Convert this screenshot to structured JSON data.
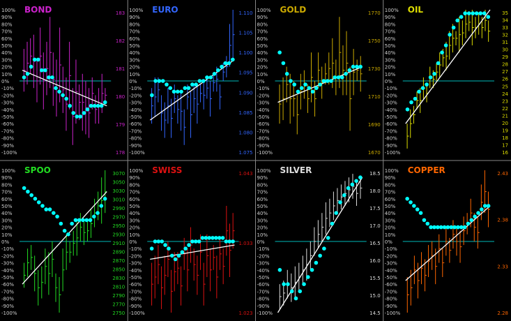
{
  "axis_left_ticks": [
    "100%",
    "90%",
    "80%",
    "70%",
    "60%",
    "50%",
    "40%",
    "30%",
    "20%",
    "10%",
    "0%",
    "-10%",
    "-20%",
    "-30%",
    "-40%",
    "-50%",
    "-60%",
    "-70%",
    "-80%",
    "-90%",
    "-100%"
  ],
  "colors": {
    "background": "#000000",
    "zero_line": "#00b8b8",
    "dots": "#00ffff",
    "trend": "#ffffff",
    "axis_text": "#cfcfcf",
    "divider": "#888888"
  },
  "chart_data": [
    {
      "type": "bar",
      "title": "BOND",
      "color": "#cc22cc",
      "right_ticks": [
        "183",
        "182",
        "181",
        "180",
        "179",
        "178"
      ],
      "ohlc_range_low_high_pct": [
        [
          -15,
          45
        ],
        [
          -5,
          55
        ],
        [
          10,
          60
        ],
        [
          -10,
          65
        ],
        [
          -30,
          30
        ],
        [
          -5,
          75
        ],
        [
          -40,
          40
        ],
        [
          -20,
          55
        ],
        [
          -10,
          90
        ],
        [
          -35,
          40
        ],
        [
          -50,
          30
        ],
        [
          -30,
          75
        ],
        [
          -45,
          20
        ],
        [
          -70,
          5
        ],
        [
          -40,
          55
        ],
        [
          -90,
          -10
        ],
        [
          -60,
          30
        ],
        [
          -55,
          -5
        ],
        [
          -70,
          10
        ],
        [
          -75,
          0
        ],
        [
          -80,
          -10
        ],
        [
          -40,
          5
        ],
        [
          -60,
          -20
        ],
        [
          -60,
          -10
        ],
        [
          -45,
          10
        ],
        [
          -30,
          -10
        ]
      ],
      "momentum_pct": [
        5,
        10,
        20,
        30,
        30,
        15,
        15,
        5,
        5,
        -10,
        -15,
        -20,
        -25,
        -35,
        -45,
        -50,
        -50,
        -45,
        -40,
        -35,
        -35,
        -35,
        -35,
        -30
      ],
      "trend_line_pct": [
        15,
        -35
      ]
    },
    {
      "type": "bar",
      "title": "EURO",
      "color": "#3366ff",
      "right_ticks": [
        "1.110",
        "1.105",
        "1.100",
        "1.095",
        "1.090",
        "1.085",
        "1.080",
        "1.075"
      ],
      "ohlc_range_low_high_pct": [
        [
          -60,
          -10
        ],
        [
          -50,
          5
        ],
        [
          -30,
          5
        ],
        [
          -70,
          -20
        ],
        [
          -80,
          -30
        ],
        [
          -60,
          -10
        ],
        [
          -80,
          -25
        ],
        [
          -45,
          -5
        ],
        [
          -60,
          -20
        ],
        [
          -70,
          -15
        ],
        [
          -90,
          -40
        ],
        [
          -40,
          -5
        ],
        [
          -80,
          -15
        ],
        [
          -45,
          -5
        ],
        [
          -60,
          -5
        ],
        [
          -30,
          -5
        ],
        [
          -40,
          0
        ],
        [
          -25,
          5
        ],
        [
          -50,
          0
        ],
        [
          -15,
          10
        ],
        [
          -15,
          20
        ],
        [
          -40,
          -5
        ],
        [
          0,
          25
        ],
        [
          5,
          35
        ],
        [
          20,
          80
        ],
        [
          30,
          100
        ]
      ],
      "momentum_pct": [
        -20,
        0,
        0,
        0,
        -5,
        -10,
        -15,
        -15,
        -15,
        -10,
        -10,
        -5,
        -5,
        0,
        0,
        5,
        5,
        10,
        15,
        20,
        25,
        25,
        30
      ],
      "trend_line_pct": [
        -55,
        30
      ]
    },
    {
      "type": "bar",
      "title": "GOLD",
      "color": "#ccaa00",
      "right_ticks": [
        "1770",
        "1750",
        "1730",
        "1710",
        "1690",
        "1670"
      ],
      "ohlc_range_low_high_pct": [
        [
          -60,
          -5
        ],
        [
          -55,
          5
        ],
        [
          -30,
          20
        ],
        [
          -60,
          10
        ],
        [
          -50,
          0
        ],
        [
          -75,
          -20
        ],
        [
          -40,
          10
        ],
        [
          -25,
          15
        ],
        [
          -45,
          -5
        ],
        [
          -30,
          40
        ],
        [
          -50,
          0
        ],
        [
          -10,
          40
        ],
        [
          -25,
          20
        ],
        [
          -5,
          25
        ],
        [
          -5,
          40
        ],
        [
          -10,
          60
        ],
        [
          -20,
          30
        ],
        [
          -10,
          90
        ],
        [
          -20,
          50
        ],
        [
          -20,
          70
        ],
        [
          -70,
          20
        ],
        [
          -20,
          45
        ],
        [
          0,
          30
        ],
        [
          -15,
          35
        ]
      ],
      "momentum_pct": [
        40,
        25,
        10,
        0,
        -5,
        -15,
        -10,
        -5,
        -10,
        -15,
        -10,
        -5,
        0,
        0,
        0,
        5,
        5,
        5,
        10,
        15,
        20,
        20,
        20
      ],
      "trend_line_pct": [
        -30,
        20
      ]
    },
    {
      "type": "bar",
      "title": "OIL",
      "color": "#dddd00",
      "right_ticks": [
        "35",
        "34",
        "33",
        "32",
        "31",
        "30",
        "29",
        "28",
        "27",
        "26",
        "25",
        "24",
        "23",
        "22",
        "21",
        "20",
        "19",
        "18",
        "17",
        "16"
      ],
      "ohlc_range_low_high_pct": [
        [
          -95,
          -60
        ],
        [
          -80,
          -40
        ],
        [
          -60,
          -35
        ],
        [
          -40,
          -15
        ],
        [
          -45,
          -10
        ],
        [
          -25,
          5
        ],
        [
          -30,
          -5
        ],
        [
          -10,
          20
        ],
        [
          -10,
          15
        ],
        [
          0,
          25
        ],
        [
          5,
          40
        ],
        [
          20,
          45
        ],
        [
          15,
          55
        ],
        [
          30,
          70
        ],
        [
          40,
          80
        ],
        [
          50,
          70
        ],
        [
          40,
          90
        ],
        [
          50,
          85
        ],
        [
          60,
          100
        ],
        [
          70,
          95
        ],
        [
          50,
          100
        ],
        [
          60,
          90
        ],
        [
          65,
          95
        ],
        [
          60,
          90
        ],
        [
          70,
          100
        ],
        [
          55,
          85
        ]
      ],
      "momentum_pct": [
        -40,
        -30,
        -25,
        -15,
        -10,
        -5,
        5,
        10,
        25,
        40,
        50,
        65,
        75,
        85,
        90,
        95,
        95,
        95,
        95,
        95,
        95,
        90
      ],
      "trend_line_pct": [
        -60,
        100
      ]
    },
    {
      "type": "bar",
      "title": "SPOO",
      "color": "#22dd22",
      "right_ticks": [
        "3070",
        "3050",
        "3030",
        "3010",
        "2990",
        "2970",
        "2950",
        "2930",
        "2910",
        "2890",
        "2870",
        "2850",
        "2830",
        "2810",
        "2790",
        "2770",
        "2750"
      ],
      "ohlc_range_low_high_pct": [
        [
          -65,
          -30
        ],
        [
          -50,
          -10
        ],
        [
          -40,
          -5
        ],
        [
          -70,
          -20
        ],
        [
          -90,
          -40
        ],
        [
          -80,
          -35
        ],
        [
          -60,
          -10
        ],
        [
          -75,
          -15
        ],
        [
          -50,
          0
        ],
        [
          -85,
          -45
        ],
        [
          -100,
          -50
        ],
        [
          -70,
          -10
        ],
        [
          -40,
          10
        ],
        [
          -30,
          0
        ],
        [
          -20,
          15
        ],
        [
          -20,
          30
        ],
        [
          0,
          40
        ],
        [
          -5,
          30
        ],
        [
          0,
          30
        ],
        [
          5,
          45
        ],
        [
          20,
          60
        ],
        [
          30,
          70
        ],
        [
          25,
          90
        ],
        [
          40,
          100
        ]
      ],
      "momentum_pct": [
        75,
        70,
        65,
        60,
        55,
        50,
        45,
        45,
        40,
        35,
        25,
        15,
        10,
        25,
        30,
        30,
        30,
        30,
        30,
        35,
        40,
        50,
        60
      ],
      "trend_line_pct": [
        -60,
        70
      ]
    },
    {
      "type": "bar",
      "title": "SWISS",
      "color": "#dd1111",
      "right_ticks": [
        "1.043",
        "1.033",
        "1.023"
      ],
      "ohlc_range_low_high_pct": [
        [
          -90,
          -30
        ],
        [
          -80,
          -20
        ],
        [
          -60,
          -5
        ],
        [
          -95,
          -35
        ],
        [
          -75,
          -20
        ],
        [
          -50,
          0
        ],
        [
          -100,
          -40
        ],
        [
          -70,
          -15
        ],
        [
          -60,
          -15
        ],
        [
          -90,
          -35
        ],
        [
          -40,
          5
        ],
        [
          -70,
          -10
        ],
        [
          -30,
          20
        ],
        [
          -55,
          -10
        ],
        [
          -75,
          -20
        ],
        [
          -40,
          10
        ],
        [
          -90,
          -30
        ],
        [
          -50,
          10
        ],
        [
          -70,
          -10
        ],
        [
          -40,
          -5
        ],
        [
          -80,
          -20
        ],
        [
          -40,
          5
        ],
        [
          -60,
          -10
        ],
        [
          -20,
          50
        ],
        [
          -50,
          25
        ],
        [
          -10,
          40
        ]
      ],
      "momentum_pct": [
        -10,
        0,
        0,
        0,
        -5,
        -10,
        -20,
        -25,
        -20,
        -15,
        -10,
        -5,
        0,
        0,
        0,
        5,
        5,
        5,
        5,
        5,
        5,
        5,
        0,
        0,
        0
      ],
      "trend_line_pct": [
        -25,
        -5
      ]
    },
    {
      "type": "bar",
      "title": "SILVER",
      "color": "#dddddd",
      "right_ticks": [
        "18.5",
        "18.0",
        "17.5",
        "17.0",
        "16.5",
        "16.0",
        "15.5",
        "15.0",
        "14.5"
      ],
      "ohlc_range_low_high_pct": [
        [
          -95,
          -60
        ],
        [
          -90,
          -55
        ],
        [
          -80,
          -40
        ],
        [
          -85,
          -45
        ],
        [
          -80,
          -35
        ],
        [
          -70,
          -30
        ],
        [
          -60,
          -20
        ],
        [
          -55,
          -10
        ],
        [
          -40,
          0
        ],
        [
          -20,
          20
        ],
        [
          -10,
          30
        ],
        [
          0,
          40
        ],
        [
          10,
          55
        ],
        [
          20,
          60
        ],
        [
          30,
          70
        ],
        [
          40,
          75
        ],
        [
          45,
          80
        ],
        [
          50,
          85
        ],
        [
          55,
          90
        ],
        [
          60,
          95
        ],
        [
          50,
          85
        ],
        [
          60,
          90
        ]
      ],
      "momentum_pct": [
        -40,
        -60,
        -60,
        -70,
        -80,
        -70,
        -60,
        -50,
        -40,
        -30,
        -20,
        -10,
        5,
        25,
        40,
        55,
        65,
        75,
        80,
        85,
        90
      ],
      "trend_line_pct": [
        -100,
        90
      ]
    },
    {
      "type": "bar",
      "title": "COPPER",
      "color": "#ff6600",
      "right_ticks": [
        "2.43",
        "2.38",
        "2.33",
        "2.28"
      ],
      "ohlc_range_low_high_pct": [
        [
          -100,
          -50
        ],
        [
          -90,
          -40
        ],
        [
          -60,
          -20
        ],
        [
          -80,
          -30
        ],
        [
          -60,
          -15
        ],
        [
          -70,
          -25
        ],
        [
          -50,
          -5
        ],
        [
          -40,
          0
        ],
        [
          -60,
          -10
        ],
        [
          -30,
          10
        ],
        [
          -50,
          -10
        ],
        [
          -20,
          20
        ],
        [
          -30,
          5
        ],
        [
          -10,
          30
        ],
        [
          -20,
          20
        ],
        [
          -30,
          15
        ],
        [
          -5,
          35
        ],
        [
          10,
          40
        ],
        [
          20,
          60
        ],
        [
          0,
          40
        ],
        [
          -10,
          35
        ],
        [
          30,
          80
        ],
        [
          40,
          100
        ],
        [
          20,
          70
        ]
      ],
      "momentum_pct": [
        60,
        55,
        50,
        45,
        40,
        30,
        25,
        20,
        20,
        20,
        20,
        20,
        20,
        20,
        20,
        20,
        20,
        20,
        25,
        30,
        35,
        40,
        45,
        50,
        50
      ],
      "trend_line_pct": [
        -55,
        50
      ]
    }
  ]
}
